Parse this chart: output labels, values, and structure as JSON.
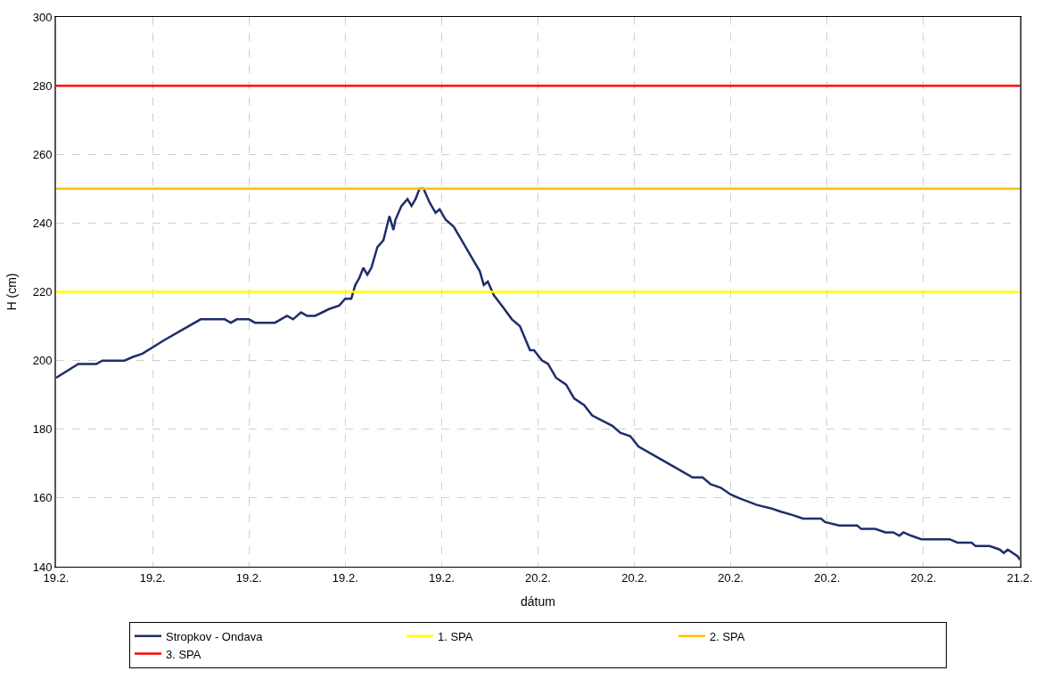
{
  "chart_data": {
    "type": "line",
    "xlabel": "dátum",
    "ylabel": "H (cm)",
    "x": [
      "--02-19T00:00",
      "--02-19T01:06",
      "--02-19T02:00",
      "--02-19T02:18",
      "--02-19T03:24",
      "--02-19T03:48",
      "--02-19T04:18",
      "--02-19T05:24",
      "--02-19T06:18",
      "--02-19T07:12",
      "--02-19T08:24",
      "--02-19T08:42",
      "--02-19T09:00",
      "--02-19T09:36",
      "--02-19T09:54",
      "--02-19T10:54",
      "--02-19T11:30",
      "--02-19T11:48",
      "--02-19T12:12",
      "--02-19T12:30",
      "--02-19T12:54",
      "--02-19T13:36",
      "--02-19T14:06",
      "--02-19T14:24",
      "--02-19T14:42",
      "--02-19T14:54",
      "--02-19T15:06",
      "--02-19T15:18",
      "--02-19T15:30",
      "--02-19T15:42",
      "--02-19T16:00",
      "--02-19T16:18",
      "--02-19T16:36",
      "--02-19T16:48",
      "--02-19T16:54",
      "--02-19T17:12",
      "--02-19T17:30",
      "--02-19T17:42",
      "--02-19T17:54",
      "--02-19T18:06",
      "--02-19T18:18",
      "--02-19T18:36",
      "--02-19T18:54",
      "--02-19T19:06",
      "--02-19T19:24",
      "--02-19T19:48",
      "--02-19T20:12",
      "--02-19T20:48",
      "--02-19T21:06",
      "--02-19T21:18",
      "--02-19T21:30",
      "--02-19T21:48",
      "--02-19T22:12",
      "--02-19T22:42",
      "--02-19T23:06",
      "--02-19T23:36",
      "--02-19T23:48",
      "--02-20T00:12",
      "--02-20T00:30",
      "--02-20T00:54",
      "--02-20T01:24",
      "--02-20T01:48",
      "--02-20T02:18",
      "--02-20T02:42",
      "--02-20T03:42",
      "--02-20T04:06",
      "--02-20T04:36",
      "--02-20T05:00",
      "--02-20T05:54",
      "--02-20T06:48",
      "--02-20T07:42",
      "--02-20T08:12",
      "--02-20T08:36",
      "--02-20T09:06",
      "--02-20T09:36",
      "--02-20T10:00",
      "--02-20T10:54",
      "--02-20T11:36",
      "--02-20T12:06",
      "--02-20T12:42",
      "--02-20T13:12",
      "--02-20T14:06",
      "--02-20T14:18",
      "--02-20T15:00",
      "--02-20T15:54",
      "--02-20T16:06",
      "--02-20T16:48",
      "--02-20T17:18",
      "--02-20T17:42",
      "--02-20T18:00",
      "--02-20T18:12",
      "--02-20T18:36",
      "--02-20T19:06",
      "--02-20T20:30",
      "--02-20T20:54",
      "--02-20T21:36",
      "--02-20T21:48",
      "--02-20T22:30",
      "--02-20T23:00",
      "--02-20T23:12",
      "--02-20T23:24",
      "--02-20T23:54",
      "--02-21T00:00"
    ],
    "series": [
      {
        "name": "Stropkov - Ondava",
        "color": "#1f2d6b",
        "values": [
          195,
          199,
          199,
          200,
          200,
          201,
          202,
          206,
          209,
          212,
          212,
          211,
          212,
          212,
          211,
          211,
          213,
          212,
          214,
          213,
          213,
          215,
          216,
          218,
          218,
          222,
          224,
          227,
          225,
          227,
          233,
          235,
          242,
          238,
          241,
          245,
          247,
          245,
          247,
          250,
          250,
          246,
          243,
          244,
          241,
          239,
          235,
          229,
          226,
          222,
          223,
          219,
          216,
          212,
          210,
          203,
          203,
          200,
          199,
          195,
          193,
          189,
          187,
          184,
          181,
          179,
          178,
          175,
          172,
          169,
          166,
          166,
          164,
          163,
          161,
          160,
          158,
          157,
          156,
          155,
          154,
          154,
          153,
          152,
          152,
          151,
          151,
          150,
          150,
          149,
          150,
          149,
          148,
          148,
          147,
          147,
          146,
          146,
          145,
          144,
          145,
          143,
          142
        ]
      }
    ],
    "ref_lines": [
      {
        "axis": "y",
        "value": 220,
        "label": "1. SPA",
        "color": "#ffff00"
      },
      {
        "axis": "y",
        "value": 250,
        "label": "2. SPA",
        "color": "#ffc000"
      },
      {
        "axis": "y",
        "value": 280,
        "label": "3. SPA",
        "color": "#ff0000"
      }
    ],
    "xlim": [
      "--02-19T00:00",
      "--02-21T00:00"
    ],
    "xticks": [
      {
        "value": "--02-19T00:00",
        "label": "19.2."
      },
      {
        "value": "--02-19T04:48",
        "label": "19.2."
      },
      {
        "value": "--02-19T09:36",
        "label": "19.2."
      },
      {
        "value": "--02-19T14:24",
        "label": "19.2."
      },
      {
        "value": "--02-19T19:12",
        "label": "19.2."
      },
      {
        "value": "--02-20T00:00",
        "label": "20.2."
      },
      {
        "value": "--02-20T04:48",
        "label": "20.2."
      },
      {
        "value": "--02-20T09:36",
        "label": "20.2."
      },
      {
        "value": "--02-20T14:24",
        "label": "20.2."
      },
      {
        "value": "--02-20T19:12",
        "label": "20.2."
      },
      {
        "value": "--02-21T00:00",
        "label": "21.2."
      }
    ],
    "ylim": [
      140,
      300
    ],
    "yticks": [
      140,
      160,
      180,
      200,
      220,
      240,
      260,
      280,
      300
    ],
    "grid": true,
    "legend": "bottom",
    "marker": "none",
    "line_style": "solid"
  }
}
